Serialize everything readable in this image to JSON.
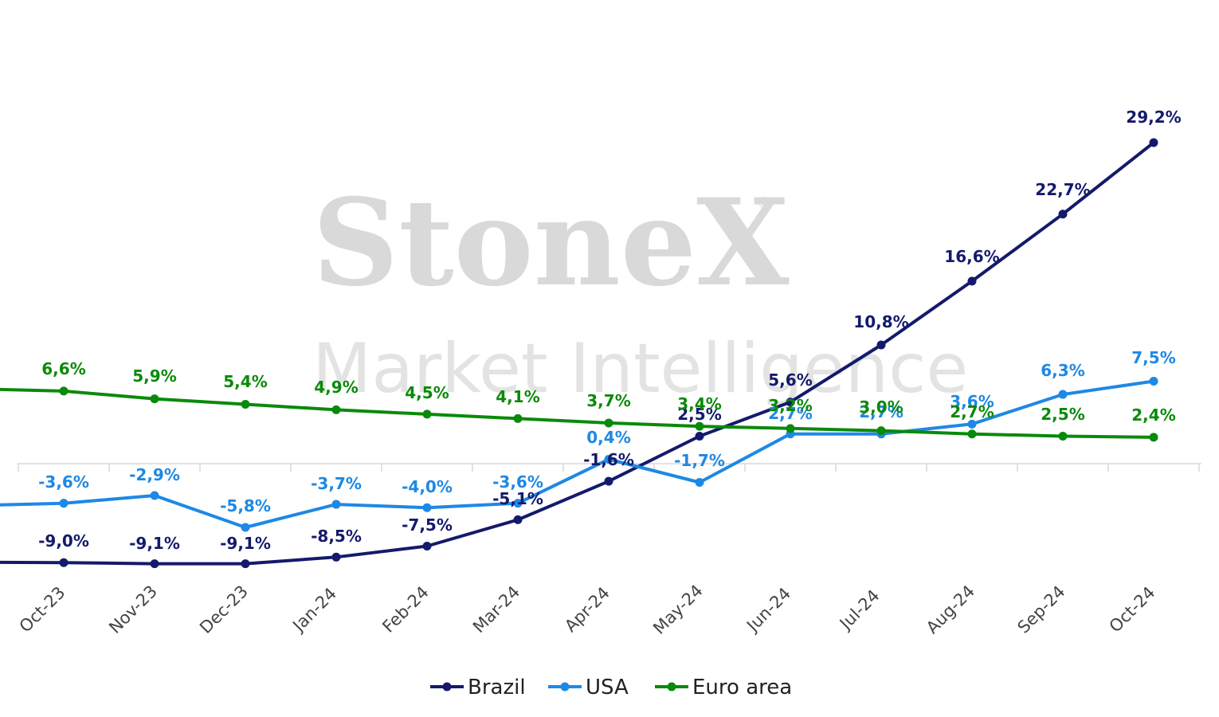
{
  "watermark": {
    "brand": "StoneX",
    "registered": "®",
    "subtitle": "Market Intelligence"
  },
  "chart_data": {
    "type": "line",
    "categories": [
      "Oct-23",
      "Nov-23",
      "Dec-23",
      "Jan-24",
      "Feb-24",
      "Mar-24",
      "Apr-24",
      "May-24",
      "Jun-24",
      "Jul-24",
      "Aug-24",
      "Sep-24",
      "Oct-24"
    ],
    "series": [
      {
        "name": "Brazil",
        "color": "#141A6B",
        "values": [
          -9.0,
          -9.1,
          -9.1,
          -8.5,
          -7.5,
          -5.1,
          -1.6,
          2.5,
          5.6,
          10.8,
          16.6,
          22.7,
          29.2
        ],
        "labels": [
          "-9,0%",
          "-9,1%",
          "-9,1%",
          "-8,5%",
          "-7,5%",
          "-5,1%",
          "-1,6%",
          "2,5%",
          "5,6%",
          "10,8%",
          "16,6%",
          "22,7%",
          "29,2%"
        ]
      },
      {
        "name": "USA",
        "color": "#1E88E5",
        "values": [
          -3.6,
          -2.9,
          -5.8,
          -3.7,
          -4.0,
          -3.6,
          0.4,
          -1.7,
          2.7,
          2.7,
          3.6,
          6.3,
          7.5
        ],
        "labels": [
          "-3,6%",
          "-2,9%",
          "-5,8%",
          "-3,7%",
          "-4,0%",
          "-3,6%",
          "0,4%",
          "-1,7%",
          "2,7%",
          "2,7%",
          "3,6%",
          "6,3%",
          "7,5%"
        ]
      },
      {
        "name": "Euro area",
        "color": "#0A8A0A",
        "values": [
          6.6,
          5.9,
          5.4,
          4.9,
          4.5,
          4.1,
          3.7,
          3.4,
          3.2,
          3.0,
          2.7,
          2.5,
          2.4
        ],
        "labels": [
          "6,6%",
          "5,9%",
          "5,4%",
          "4,9%",
          "4,5%",
          "4,1%",
          "3,7%",
          "3,4%",
          "3,2%",
          "3,0%",
          "2,7%",
          "2,5%",
          "2,4%"
        ]
      }
    ],
    "ylim": [
      -12,
      32
    ],
    "legend": "bottom",
    "grid": false
  }
}
